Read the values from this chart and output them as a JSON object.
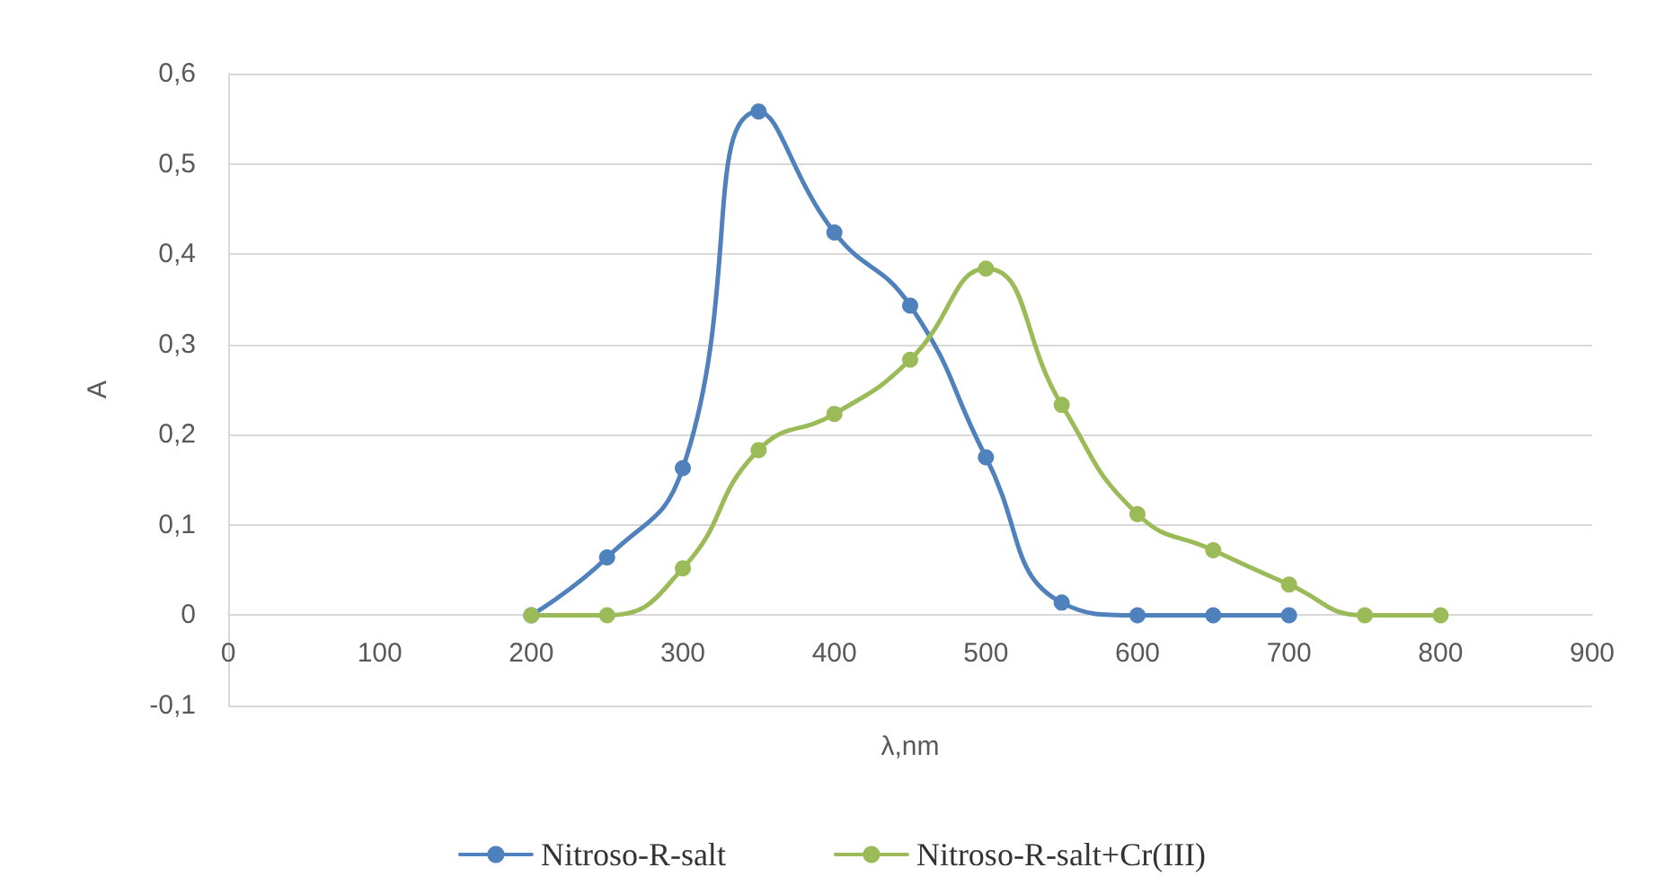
{
  "chart_data": {
    "type": "line",
    "xlabel": "λ,nm",
    "ylabel": "A",
    "xlim": [
      0,
      900
    ],
    "xticks": [
      0,
      100,
      200,
      300,
      400,
      500,
      600,
      700,
      800,
      900
    ],
    "ylim": [
      -0.1,
      0.6
    ],
    "yticks": [
      {
        "value": -0.1,
        "label": "-0,1"
      },
      {
        "value": 0,
        "label": "0"
      },
      {
        "value": 0.1,
        "label": "0,1"
      },
      {
        "value": 0.2,
        "label": "0,2"
      },
      {
        "value": 0.3,
        "label": "0,3"
      },
      {
        "value": 0.4,
        "label": "0,4"
      },
      {
        "value": 0.5,
        "label": "0,5"
      },
      {
        "value": 0.6,
        "label": "0,6"
      }
    ],
    "grid": "y",
    "legend": "bottom",
    "marker": "circle",
    "line_style": "solid",
    "series": [
      {
        "name": "Nitroso-R-salt",
        "color": "#4f81bd",
        "x": [
          200,
          250,
          300,
          350,
          400,
          450,
          500,
          550,
          600,
          650,
          700
        ],
        "values": [
          0,
          0.064,
          0.163,
          0.558,
          0.424,
          0.343,
          0.175,
          0.014,
          0,
          0,
          0
        ]
      },
      {
        "name": "Nitroso-R-salt+Cr(III)",
        "color": "#9bbb59",
        "x": [
          200,
          250,
          300,
          350,
          400,
          450,
          500,
          550,
          600,
          650,
          700,
          750,
          800
        ],
        "values": [
          0,
          0,
          0.052,
          0.183,
          0.223,
          0.283,
          0.384,
          0.233,
          0.112,
          0.072,
          0.034,
          0,
          0
        ]
      }
    ]
  }
}
